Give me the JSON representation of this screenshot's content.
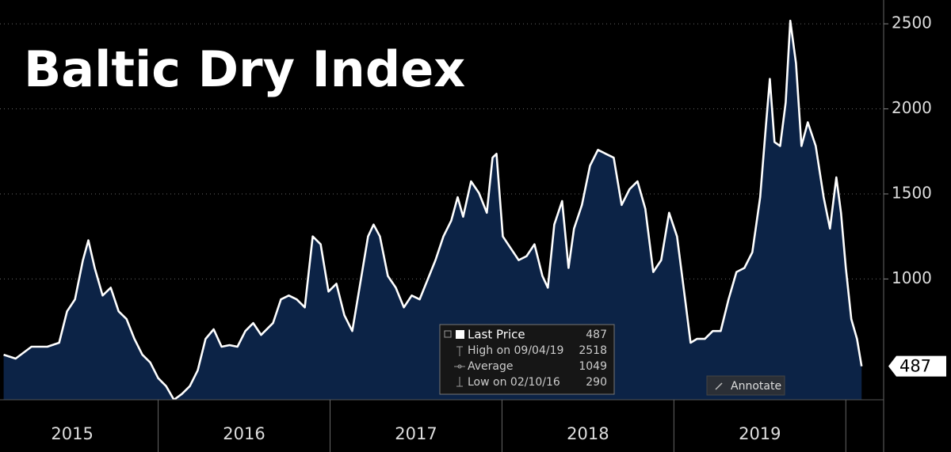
{
  "chart_data": {
    "type": "area",
    "title": "Baltic Dry Index",
    "series": [
      {
        "name": "Last Price",
        "color": "#ffffff",
        "fill": "#0c2346",
        "x": [
          2015.101,
          2015.171,
          2015.263,
          2015.355,
          2015.424,
          2015.47,
          2015.516,
          2015.562,
          2015.594,
          2015.631,
          2015.677,
          2015.724,
          2015.77,
          2015.816,
          2015.862,
          2015.908,
          2015.954,
          2016.0,
          2016.046,
          2016.092,
          2016.138,
          2016.184,
          2016.23,
          2016.276,
          2016.323,
          2016.369,
          2016.415,
          2016.461,
          2016.507,
          2016.553,
          2016.599,
          2016.668,
          2016.714,
          2016.76,
          2016.806,
          2016.853,
          2016.899,
          2016.945,
          2016.991,
          2017.037,
          2017.083,
          2017.129,
          2017.175,
          2017.221,
          2017.253,
          2017.29,
          2017.336,
          2017.382,
          2017.429,
          2017.475,
          2017.521,
          2017.567,
          2017.613,
          2017.659,
          2017.705,
          2017.742,
          2017.774,
          2017.82,
          2017.866,
          2017.912,
          2017.945,
          2017.968,
          2018.005,
          2018.051,
          2018.097,
          2018.143,
          2018.189,
          2018.235,
          2018.267,
          2018.304,
          2018.35,
          2018.387,
          2018.419,
          2018.465,
          2018.512,
          2018.558,
          2018.604,
          2018.65,
          2018.696,
          2018.742,
          2018.788,
          2018.834,
          2018.88,
          2018.926,
          2018.972,
          2019.018,
          2019.065,
          2019.097,
          2019.134,
          2019.18,
          2019.226,
          2019.272,
          2019.318,
          2019.364,
          2019.41,
          2019.456,
          2019.502,
          2019.535,
          2019.558,
          2019.585,
          2019.618,
          2019.65,
          2019.677,
          2019.71,
          2019.742,
          2019.779,
          2019.825,
          2019.871,
          2019.908,
          2019.945,
          2019.972,
          2020.0,
          2020.032,
          2020.065,
          2020.092
        ],
        "values": [
          555,
          532,
          602,
          602,
          625,
          810,
          880,
          1110,
          1227,
          1065,
          903,
          949,
          810,
          764,
          648,
          555,
          509,
          417,
          370,
          290,
          324,
          370,
          463,
          648,
          704,
          602,
          611,
          602,
          694,
          741,
          671,
          741,
          880,
          903,
          880,
          833,
          1250,
          1204,
          926,
          972,
          787,
          694,
          972,
          1250,
          1320,
          1250,
          1018,
          949,
          833,
          903,
          880,
          995,
          1111,
          1250,
          1343,
          1481,
          1366,
          1574,
          1505,
          1389,
          1713,
          1736,
          1250,
          1180,
          1111,
          1134,
          1204,
          1018,
          949,
          1320,
          1458,
          1065,
          1296,
          1435,
          1666,
          1759,
          1736,
          1713,
          1435,
          1528,
          1574,
          1412,
          1041,
          1111,
          1389,
          1250,
          880,
          625,
          648,
          648,
          694,
          694,
          880,
          1041,
          1065,
          1157,
          1481,
          1898,
          2176,
          1805,
          1782,
          2037,
          2518,
          2268,
          1782,
          1921,
          1782,
          1481,
          1296,
          1597,
          1389,
          1065,
          764,
          648,
          487
        ]
      }
    ],
    "xlim": [
      2015.08,
      2020.22
    ],
    "xticks": [
      2015,
      2016,
      2017,
      2018,
      2019
    ],
    "ylim": [
      290,
      2640
    ],
    "yticks": [
      1000,
      1500,
      2000,
      2500
    ],
    "grid": true,
    "stats": [
      {
        "label": "Last Price",
        "value": 487
      },
      {
        "label": "High on 09/04/19",
        "value": 2518
      },
      {
        "label": "Average",
        "value": 1049
      },
      {
        "label": "Low on 02/10/16",
        "value": 290
      }
    ],
    "annotate_button": "Annotate"
  }
}
